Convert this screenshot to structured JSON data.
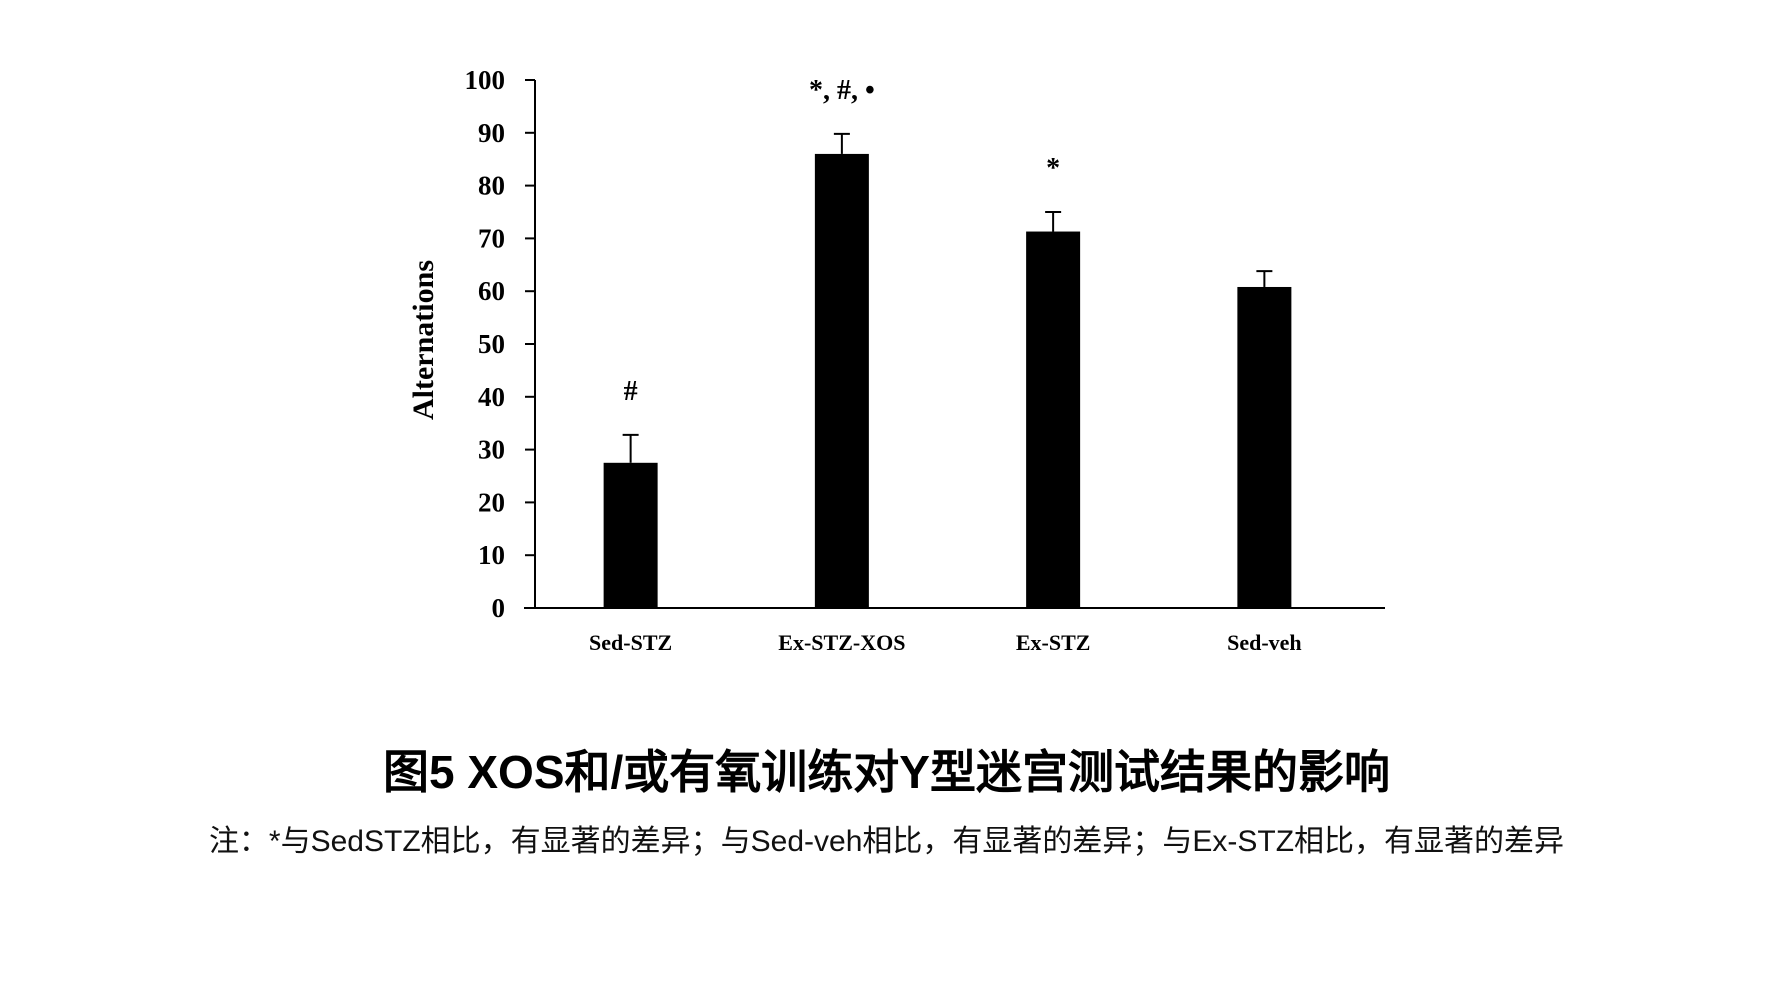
{
  "chart_data": {
    "type": "bar",
    "categories": [
      "Sed-STZ",
      "Ex-STZ-XOS",
      "Ex-STZ",
      "Sed-veh"
    ],
    "values": [
      27.5,
      86,
      71.3,
      60.8
    ],
    "errors": [
      5.3,
      3.8,
      3.7,
      3.0
    ],
    "annotations": [
      "#",
      "*, #, •",
      "*",
      ""
    ],
    "ylabel": "Alternations",
    "xlabel": "",
    "ylim": [
      0,
      100
    ],
    "yticks": [
      0,
      10,
      20,
      30,
      40,
      50,
      60,
      70,
      80,
      90,
      100
    ],
    "bar_color": "#000000",
    "grid": false
  },
  "caption": {
    "title": "图5 XOS和/或有氧训练对Y型迷宫测试结果的影响",
    "note": "注：*与SedSTZ相比，有显著的差异；与Sed-veh相比，有显著的差异；与Ex-STZ相比，有显著的差异"
  }
}
